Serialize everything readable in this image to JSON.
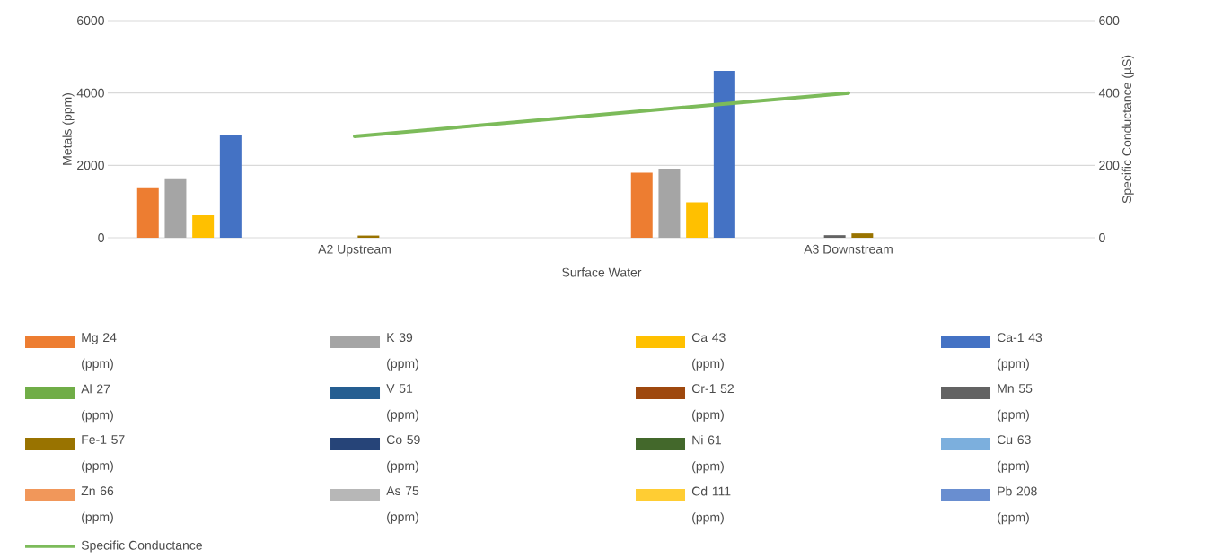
{
  "chart_data": {
    "type": "bar",
    "xlabel": "Surface Water",
    "ylabel": "Metals (ppm)",
    "y2label": "Specific Conductance (µS)",
    "categories": [
      "A2 Upstream",
      "A3 Downstream"
    ],
    "series": [
      {
        "name": "Mg 24 (ppm)",
        "color": "#ed7d31",
        "values": [
          1370,
          1800
        ]
      },
      {
        "name": "K 39 (ppm)",
        "color": "#a5a5a5",
        "values": [
          1640,
          1910
        ]
      },
      {
        "name": "Ca 43 (ppm)",
        "color": "#ffc000",
        "values": [
          620,
          980
        ]
      },
      {
        "name": "Ca-1 43 (ppm)",
        "color": "#4472c4",
        "values": [
          2830,
          4610
        ]
      },
      {
        "name": "Al 27 (ppm)",
        "color": "#70ad47",
        "values": [
          null,
          null
        ]
      },
      {
        "name": "V 51 (ppm)",
        "color": "#255e91",
        "values": [
          null,
          null
        ]
      },
      {
        "name": "Cr-1 52 (ppm)",
        "color": "#9e480e",
        "values": [
          null,
          null
        ]
      },
      {
        "name": "Mn 55 (ppm)",
        "color": "#636363",
        "values": [
          null,
          70
        ]
      },
      {
        "name": "Fe-1 57 (ppm)",
        "color": "#997300",
        "values": [
          60,
          120
        ]
      },
      {
        "name": "Co 59 (ppm)",
        "color": "#264478",
        "values": [
          null,
          null
        ]
      },
      {
        "name": "Ni 61 (ppm)",
        "color": "#43682b",
        "values": [
          null,
          null
        ]
      },
      {
        "name": "Cu 63 (ppm)",
        "color": "#7cafdd",
        "values": [
          null,
          null
        ]
      },
      {
        "name": "Zn 66 (ppm)",
        "color": "#f1975a",
        "values": [
          null,
          null
        ]
      },
      {
        "name": "As 75 (ppm)",
        "color": "#b7b7b7",
        "values": [
          null,
          null
        ]
      },
      {
        "name": "Cd 111 (ppm)",
        "color": "#ffcd33",
        "values": [
          null,
          null
        ]
      },
      {
        "name": "Pb 208 (ppm)",
        "color": "#698ed0",
        "values": [
          null,
          null
        ]
      },
      {
        "name": "Specific Conductance",
        "color": "#7cbb5a",
        "type": "line",
        "axis": "y2",
        "values": [
          280,
          400
        ]
      }
    ],
    "ylim": [
      0,
      6000
    ],
    "yticks": [
      0,
      2000,
      4000,
      6000
    ],
    "y2lim": [
      0,
      600
    ],
    "y2ticks": [
      0,
      200,
      400,
      600
    ],
    "grid": "y",
    "legend": "bottom"
  }
}
